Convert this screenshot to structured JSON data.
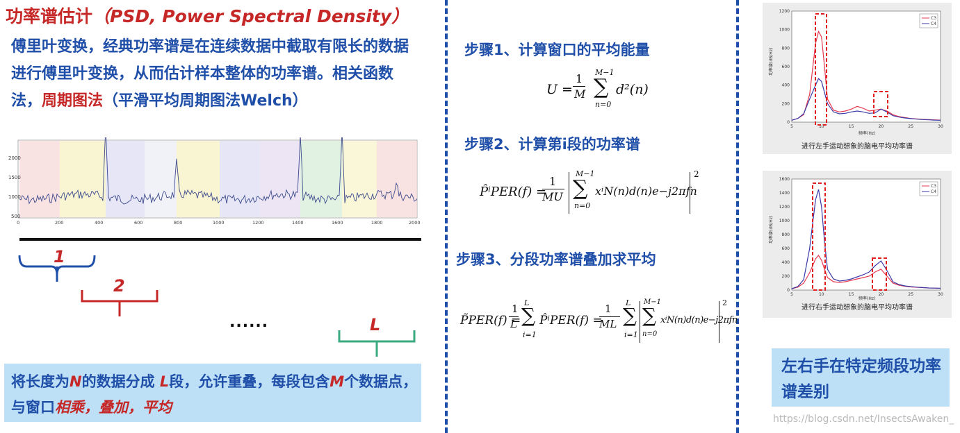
{
  "left": {
    "title_cn": "功率谱估计",
    "title_en": "（PSD, Power Spectral Density）",
    "desc_blue1": "傅里叶变换，经典功率谱是在连续数据中截取有限长的数据进行傅里叶变换，从而估计样本整体的功率谱。相关函数法，",
    "desc_red": "周期图法",
    "desc_blue2": "（平滑平均周期图法Welch）",
    "eeg_y_ticks": [
      "2000",
      "1500",
      "1000",
      "500"
    ],
    "eeg_x_ticks": [
      "0",
      "200",
      "400",
      "600",
      "800",
      "1000",
      "1200",
      "1400",
      "1600",
      "1800",
      "2000"
    ],
    "segment_labels": [
      "1",
      "2",
      "L"
    ],
    "dots": "......",
    "note": {
      "t1": "将长度为",
      "n": "N",
      "t2": "的数据分成",
      "l": "L",
      "t3": "段，允许重叠，每段包含",
      "m": "M",
      "t4": "个数据点，与窗口",
      "ops": "相乘，叠加，平均"
    }
  },
  "steps": [
    {
      "label": "步骤1、计算窗口的平均能量"
    },
    {
      "label": "步骤2、计算第i段的功率谱"
    },
    {
      "label": "步骤3、分段功率谱叠加求平均"
    }
  ],
  "formulas": {
    "u_lhs": "U =",
    "one": "1",
    "M": "M",
    "MU": "MU",
    "ML": "ML",
    "L": "L",
    "M1": "M−1",
    "n0": "n=0",
    "i1": "i=1",
    "sum": "∑",
    "d2n": "d²(n)",
    "p_lhs": "P̂ⁱPER(f) =",
    "p_body": "xⁱN(n)d(n)e−j2πfn",
    "sq": "2",
    "pbar_lhs": "P̃PER(f) =",
    "pbar_mid": "P̂ⁱPER(f) =",
    "eq": "="
  },
  "charts": [
    {
      "caption": "进行左手运动想象的脑电平均功率谱",
      "y_ticks": [
        "1200",
        "1000",
        "800",
        "600",
        "400",
        "200",
        "0"
      ],
      "x_ticks": [
        "5",
        "10",
        "15",
        "20",
        "25",
        "30"
      ],
      "legend": [
        "C3",
        "C4"
      ],
      "ylabel": "功率谱(dB/Hz)",
      "xlabel": "频率(Hz)"
    },
    {
      "caption": "进行右手运动想象的脑电平均功率谱",
      "y_ticks": [
        "1600",
        "1400",
        "1200",
        "1000",
        "800",
        "600",
        "400",
        "200",
        "0"
      ],
      "x_ticks": [
        "5",
        "10",
        "15",
        "20",
        "25",
        "30"
      ],
      "legend": [
        "C3",
        "C4"
      ],
      "ylabel": "功率谱(dB/Hz)",
      "xlabel": "频率(Hz)"
    }
  ],
  "chart_data": [
    {
      "type": "line",
      "title": "进行左手运动想象的脑电平均功率谱",
      "xlabel": "频率(Hz)",
      "ylabel": "功率谱(dB/Hz)",
      "xlim": [
        5,
        30
      ],
      "ylim": [
        0,
        1200
      ],
      "x": [
        5,
        6,
        7,
        8,
        9,
        9.5,
        10,
        10.5,
        11,
        12,
        13,
        14,
        15,
        16,
        17,
        18,
        19,
        20,
        21,
        22,
        23,
        24,
        25,
        26,
        27,
        28,
        29,
        30
      ],
      "series": [
        {
          "name": "C3",
          "color": "#e53950",
          "values": [
            20,
            40,
            80,
            300,
            850,
            980,
            920,
            600,
            250,
            130,
            110,
            120,
            140,
            170,
            150,
            120,
            130,
            140,
            120,
            80,
            60,
            50,
            40,
            35,
            30,
            28,
            25,
            22
          ]
        },
        {
          "name": "C4",
          "color": "#3a3aa8",
          "values": [
            20,
            40,
            90,
            250,
            400,
            470,
            440,
            320,
            200,
            110,
            90,
            95,
            110,
            120,
            110,
            95,
            100,
            140,
            110,
            70,
            55,
            45,
            38,
            32,
            28,
            25,
            22,
            20
          ]
        }
      ]
    },
    {
      "type": "line",
      "title": "进行右手运动想象的脑电平均功率谱",
      "xlabel": "频率(Hz)",
      "ylabel": "功率谱(dB/Hz)",
      "xlim": [
        5,
        30
      ],
      "ylim": [
        0,
        1600
      ],
      "x": [
        5,
        6,
        7,
        8,
        9,
        9.5,
        10,
        10.5,
        11,
        12,
        13,
        14,
        15,
        16,
        17,
        18,
        19,
        20,
        21,
        22,
        23,
        24,
        25,
        26,
        27,
        28,
        29,
        30
      ],
      "series": [
        {
          "name": "C3",
          "color": "#e53950",
          "values": [
            20,
            40,
            100,
            250,
            450,
            500,
            430,
            300,
            180,
            120,
            110,
            120,
            140,
            160,
            180,
            200,
            260,
            300,
            200,
            100,
            70,
            55,
            45,
            40,
            35,
            30,
            28,
            25
          ]
        },
        {
          "name": "C4",
          "color": "#3a3aa8",
          "values": [
            20,
            50,
            150,
            600,
            1300,
            1450,
            1200,
            700,
            300,
            160,
            130,
            140,
            160,
            190,
            220,
            260,
            350,
            420,
            280,
            120,
            80,
            60,
            50,
            42,
            36,
            30,
            28,
            25
          ]
        }
      ]
    }
  ],
  "conclusion": "左右手在特定频段功率谱差别",
  "watermark": "https://blog.csdn.net/InsectsAwaken_",
  "colors": {
    "blue": "#1f4fa8",
    "red": "#c62828",
    "note_bg": "#bde0f7"
  }
}
